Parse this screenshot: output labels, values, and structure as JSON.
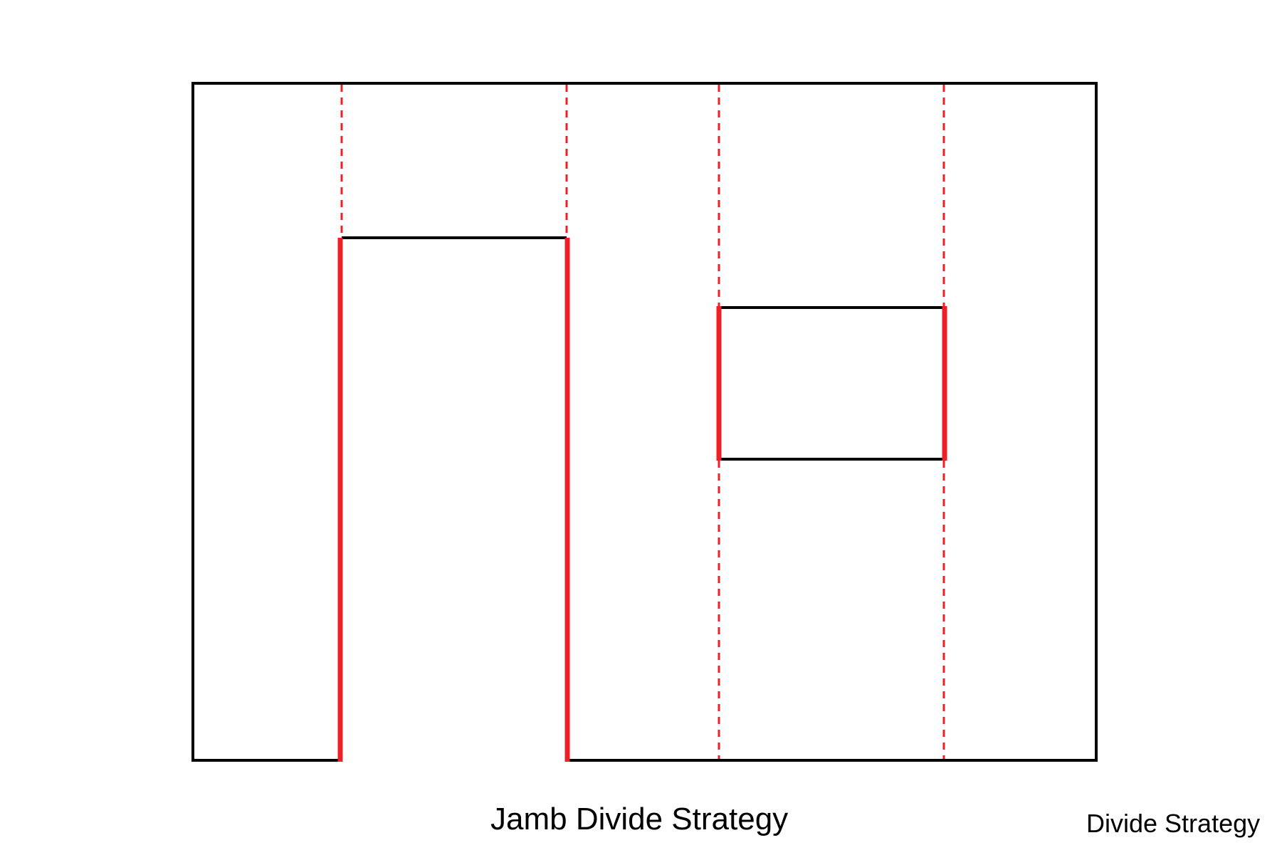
{
  "diagram": {
    "title": "Jamb Divide Strategy",
    "label": "Divide Strategy"
  },
  "colors": {
    "outline": "#000000",
    "jamb": "#ee2027",
    "background": "#ffffff"
  }
}
